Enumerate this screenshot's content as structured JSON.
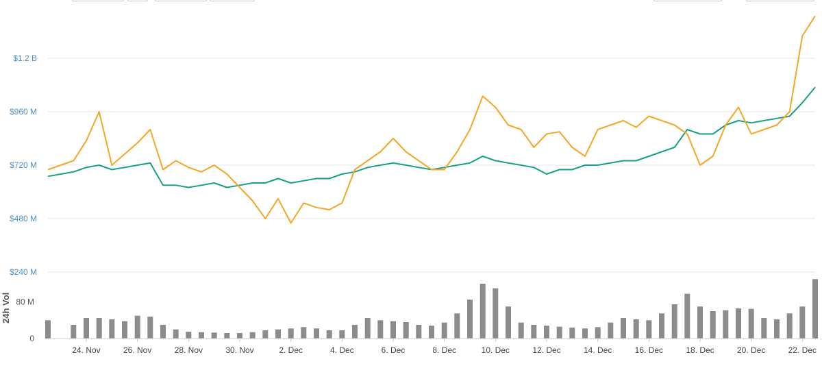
{
  "chart_data": {
    "type": "line",
    "title": "",
    "price_axis": {
      "ticks": [
        240000000,
        480000000,
        720000000,
        960000000,
        1200000000
      ],
      "tick_labels": [
        "$240 M",
        "$480 M",
        "$720 M",
        "$960 M",
        "$1.2 B"
      ],
      "ylim": [
        240000000,
        1400000000
      ],
      "grid": true
    },
    "volume_axis": {
      "label": "24h Vol",
      "ticks": [
        0,
        80000000
      ],
      "tick_labels": [
        "0",
        "80 M"
      ],
      "ylim": [
        0,
        120000000
      ]
    },
    "x_axis": {
      "range": [
        "2017-11-22T12:00",
        "2017-12-22T12:00"
      ],
      "ticks": [
        "2017-11-24",
        "2017-11-26",
        "2017-11-28",
        "2017-11-30",
        "2017-12-02",
        "2017-12-04",
        "2017-12-06",
        "2017-12-08",
        "2017-12-10",
        "2017-12-12",
        "2017-12-14",
        "2017-12-16",
        "2017-12-18",
        "2017-12-20",
        "2017-12-22"
      ],
      "tick_labels": [
        "24. Nov",
        "26. Nov",
        "28. Nov",
        "30. Nov",
        "2. Dec",
        "4. Dec",
        "6. Dec",
        "8. Dec",
        "10. Dec",
        "12. Dec",
        "14. Dec",
        "16. Dec",
        "18. Dec",
        "20. Dec",
        "22. Dec"
      ]
    },
    "series": [
      {
        "color": "#f5a623",
        "x": [
          "2017-11-22T12:00",
          "2017-11-23T12:00",
          "2017-11-24T00:00",
          "2017-11-24T12:00",
          "2017-11-25T00:00",
          "2017-11-25T12:00",
          "2017-11-26T00:00",
          "2017-11-26T12:00",
          "2017-11-27T00:00",
          "2017-11-27T12:00",
          "2017-11-28T00:00",
          "2017-11-28T12:00",
          "2017-11-29T00:00",
          "2017-11-29T12:00",
          "2017-11-30T00:00",
          "2017-11-30T12:00",
          "2017-12-01T00:00",
          "2017-12-01T12:00",
          "2017-12-02T00:00",
          "2017-12-02T12:00",
          "2017-12-03T00:00",
          "2017-12-03T12:00",
          "2017-12-04T00:00",
          "2017-12-04T12:00",
          "2017-12-05T00:00",
          "2017-12-05T12:00",
          "2017-12-06T00:00",
          "2017-12-06T12:00",
          "2017-12-07T00:00",
          "2017-12-07T12:00",
          "2017-12-08T00:00",
          "2017-12-08T12:00",
          "2017-12-09T00:00",
          "2017-12-09T12:00",
          "2017-12-10T00:00",
          "2017-12-10T12:00",
          "2017-12-11T00:00",
          "2017-12-11T12:00",
          "2017-12-12T00:00",
          "2017-12-12T12:00",
          "2017-12-13T00:00",
          "2017-12-13T12:00",
          "2017-12-14T00:00",
          "2017-12-14T12:00",
          "2017-12-15T00:00",
          "2017-12-15T12:00",
          "2017-12-16T00:00",
          "2017-12-16T12:00",
          "2017-12-17T00:00",
          "2017-12-17T12:00",
          "2017-12-18T00:00",
          "2017-12-18T12:00",
          "2017-12-19T00:00",
          "2017-12-19T12:00",
          "2017-12-20T00:00",
          "2017-12-20T12:00",
          "2017-12-21T00:00",
          "2017-12-21T12:00",
          "2017-12-22T00:00",
          "2017-12-22T12:00"
        ],
        "values": [
          700000000,
          740000000,
          830000000,
          960000000,
          720000000,
          770000000,
          820000000,
          880000000,
          700000000,
          740000000,
          710000000,
          690000000,
          720000000,
          680000000,
          620000000,
          560000000,
          480000000,
          570000000,
          460000000,
          550000000,
          530000000,
          520000000,
          550000000,
          700000000,
          740000000,
          780000000,
          840000000,
          780000000,
          740000000,
          700000000,
          700000000,
          780000000,
          880000000,
          1030000000,
          980000000,
          900000000,
          880000000,
          800000000,
          860000000,
          870000000,
          800000000,
          760000000,
          880000000,
          900000000,
          920000000,
          890000000,
          940000000,
          920000000,
          900000000,
          860000000,
          720000000,
          760000000,
          900000000,
          980000000,
          860000000,
          880000000,
          900000000,
          960000000,
          1300000000,
          1390000000
        ]
      },
      {
        "color": "#16a085",
        "x": [
          "2017-11-22T12:00",
          "2017-11-23T12:00",
          "2017-11-24T00:00",
          "2017-11-24T12:00",
          "2017-11-25T00:00",
          "2017-11-25T12:00",
          "2017-11-26T00:00",
          "2017-11-26T12:00",
          "2017-11-27T00:00",
          "2017-11-27T12:00",
          "2017-11-28T00:00",
          "2017-11-28T12:00",
          "2017-11-29T00:00",
          "2017-11-29T12:00",
          "2017-11-30T00:00",
          "2017-11-30T12:00",
          "2017-12-01T00:00",
          "2017-12-01T12:00",
          "2017-12-02T00:00",
          "2017-12-02T12:00",
          "2017-12-03T00:00",
          "2017-12-03T12:00",
          "2017-12-04T00:00",
          "2017-12-04T12:00",
          "2017-12-05T00:00",
          "2017-12-05T12:00",
          "2017-12-06T00:00",
          "2017-12-06T12:00",
          "2017-12-07T00:00",
          "2017-12-07T12:00",
          "2017-12-08T00:00",
          "2017-12-08T12:00",
          "2017-12-09T00:00",
          "2017-12-09T12:00",
          "2017-12-10T00:00",
          "2017-12-10T12:00",
          "2017-12-11T00:00",
          "2017-12-11T12:00",
          "2017-12-12T00:00",
          "2017-12-12T12:00",
          "2017-12-13T00:00",
          "2017-12-13T12:00",
          "2017-12-14T00:00",
          "2017-12-14T12:00",
          "2017-12-15T00:00",
          "2017-12-15T12:00",
          "2017-12-16T00:00",
          "2017-12-16T12:00",
          "2017-12-17T00:00",
          "2017-12-17T12:00",
          "2017-12-18T00:00",
          "2017-12-18T12:00",
          "2017-12-19T00:00",
          "2017-12-19T12:00",
          "2017-12-20T00:00",
          "2017-12-20T12:00",
          "2017-12-21T00:00",
          "2017-12-21T12:00",
          "2017-12-22T00:00",
          "2017-12-22T12:00"
        ],
        "values": [
          670000000,
          690000000,
          710000000,
          720000000,
          700000000,
          710000000,
          720000000,
          730000000,
          630000000,
          630000000,
          620000000,
          630000000,
          640000000,
          620000000,
          630000000,
          640000000,
          640000000,
          660000000,
          640000000,
          650000000,
          660000000,
          660000000,
          680000000,
          690000000,
          710000000,
          720000000,
          730000000,
          720000000,
          710000000,
          700000000,
          710000000,
          720000000,
          730000000,
          760000000,
          740000000,
          730000000,
          720000000,
          710000000,
          680000000,
          700000000,
          700000000,
          720000000,
          720000000,
          730000000,
          740000000,
          740000000,
          760000000,
          780000000,
          800000000,
          880000000,
          860000000,
          860000000,
          900000000,
          920000000,
          910000000,
          920000000,
          930000000,
          940000000,
          1000000000,
          1070000000
        ]
      }
    ],
    "volume": {
      "x": [
        "2017-11-22T12:00",
        "2017-11-23T12:00",
        "2017-11-24T00:00",
        "2017-11-24T12:00",
        "2017-11-25T00:00",
        "2017-11-25T12:00",
        "2017-11-26T00:00",
        "2017-11-26T12:00",
        "2017-11-27T00:00",
        "2017-11-27T12:00",
        "2017-11-28T00:00",
        "2017-11-28T12:00",
        "2017-11-29T00:00",
        "2017-11-29T12:00",
        "2017-11-30T00:00",
        "2017-11-30T12:00",
        "2017-12-01T00:00",
        "2017-12-01T12:00",
        "2017-12-02T00:00",
        "2017-12-02T12:00",
        "2017-12-03T00:00",
        "2017-12-03T12:00",
        "2017-12-04T00:00",
        "2017-12-04T12:00",
        "2017-12-05T00:00",
        "2017-12-05T12:00",
        "2017-12-06T00:00",
        "2017-12-06T12:00",
        "2017-12-07T00:00",
        "2017-12-07T12:00",
        "2017-12-08T00:00",
        "2017-12-08T12:00",
        "2017-12-09T00:00",
        "2017-12-09T12:00",
        "2017-12-10T00:00",
        "2017-12-10T12:00",
        "2017-12-11T00:00",
        "2017-12-11T12:00",
        "2017-12-12T00:00",
        "2017-12-12T12:00",
        "2017-12-13T00:00",
        "2017-12-13T12:00",
        "2017-12-14T00:00",
        "2017-12-14T12:00",
        "2017-12-15T00:00",
        "2017-12-15T12:00",
        "2017-12-16T00:00",
        "2017-12-16T12:00",
        "2017-12-17T00:00",
        "2017-12-17T12:00",
        "2017-12-18T00:00",
        "2017-12-18T12:00",
        "2017-12-19T00:00",
        "2017-12-19T12:00",
        "2017-12-20T00:00",
        "2017-12-20T12:00",
        "2017-12-21T00:00",
        "2017-12-21T12:00",
        "2017-12-22T00:00",
        "2017-12-22T12:00"
      ],
      "values": [
        40000000,
        30000000,
        45000000,
        45000000,
        42000000,
        38000000,
        50000000,
        48000000,
        30000000,
        20000000,
        15000000,
        14000000,
        13000000,
        12000000,
        12000000,
        14000000,
        18000000,
        20000000,
        22000000,
        25000000,
        22000000,
        18000000,
        18000000,
        30000000,
        45000000,
        40000000,
        38000000,
        36000000,
        30000000,
        28000000,
        35000000,
        55000000,
        85000000,
        120000000,
        110000000,
        70000000,
        35000000,
        30000000,
        28000000,
        26000000,
        24000000,
        22000000,
        25000000,
        35000000,
        45000000,
        42000000,
        40000000,
        55000000,
        75000000,
        98000000,
        70000000,
        60000000,
        62000000,
        66000000,
        65000000,
        45000000,
        42000000,
        55000000,
        70000000,
        130000000
      ]
    }
  },
  "top_controls": {}
}
